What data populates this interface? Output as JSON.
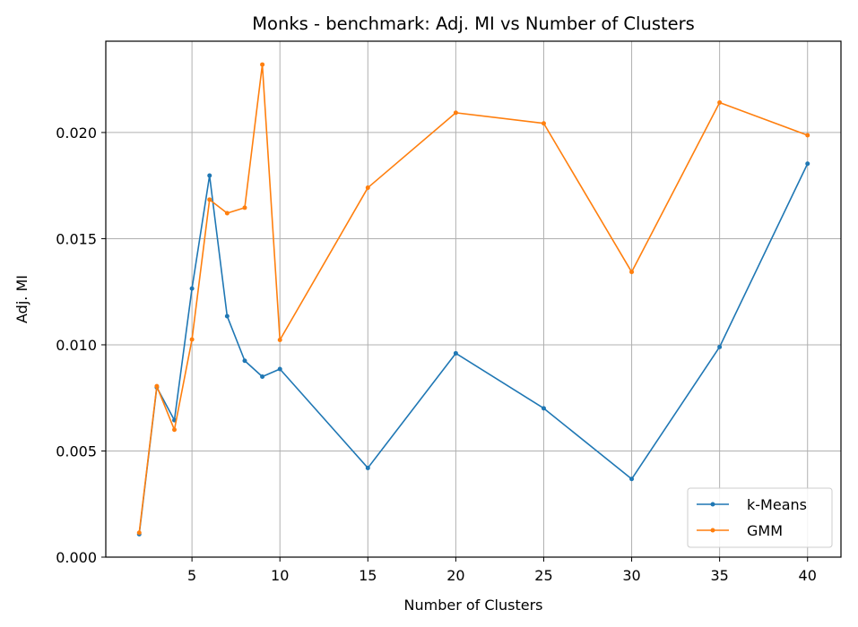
{
  "chart_data": {
    "type": "line",
    "title": "Monks - benchmark: Adj. MI vs Number of Clusters",
    "xlabel": "Number of Clusters",
    "ylabel": "Adj. MI",
    "x": [
      2,
      3,
      4,
      5,
      6,
      7,
      8,
      9,
      10,
      15,
      20,
      25,
      30,
      35,
      40
    ],
    "xticks": [
      5,
      10,
      15,
      20,
      25,
      30,
      35,
      40
    ],
    "xtick_labels": [
      "5",
      "10",
      "15",
      "20",
      "25",
      "30",
      "35",
      "40"
    ],
    "yticks": [
      0.0,
      0.005,
      0.01,
      0.015,
      0.02
    ],
    "ytick_labels": [
      "0.000",
      "0.005",
      "0.010",
      "0.015",
      "0.020"
    ],
    "xlim": [
      0.1,
      41.9
    ],
    "ylim": [
      0.0,
      0.0243
    ],
    "grid": true,
    "legend_position": "lower-right",
    "series": [
      {
        "name": "k-Means",
        "color": "#1f77b4",
        "values": [
          0.00108,
          0.008,
          0.00645,
          0.01265,
          0.01797,
          0.01135,
          0.00925,
          0.0085,
          0.00886,
          0.0042,
          0.0096,
          0.00701,
          0.00368,
          0.0099,
          0.01853
        ]
      },
      {
        "name": "GMM",
        "color": "#ff7f0e",
        "values": [
          0.00115,
          0.00805,
          0.006,
          0.01025,
          0.01684,
          0.0162,
          0.01646,
          0.0232,
          0.01023,
          0.0174,
          0.02093,
          0.02043,
          0.01343,
          0.02141,
          0.01987
        ]
      }
    ]
  }
}
